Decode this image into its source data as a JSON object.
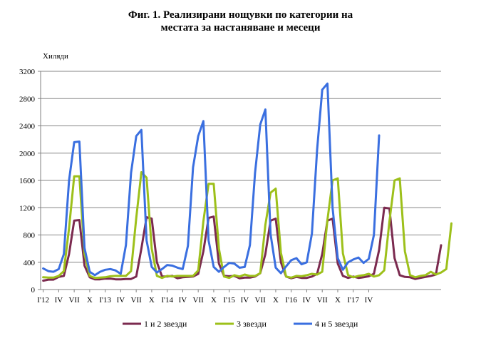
{
  "chart_data": {
    "type": "line",
    "title_line1": "Фиг. 1. Реализирани нощувки по категории на",
    "title_line2": "местата за настаняване и месеци",
    "ylabel": "Хиляди",
    "xlabel": "",
    "ylim": [
      0,
      3200
    ],
    "yticks": [
      "0",
      "400",
      "800",
      "1200",
      "1600",
      "2000",
      "2400",
      "2800",
      "3200"
    ],
    "grid": true,
    "legend_position": "bottom",
    "x_tick_labels": [
      "I'12",
      "IV",
      "VII",
      "X",
      "I'13",
      "IV",
      "VII",
      "X",
      "I'14",
      "IV",
      "VII",
      "X",
      "I'15",
      "IV",
      "VII",
      "X",
      "I'16",
      "IV",
      "VII",
      "X",
      "I'17",
      "IV"
    ],
    "series": [
      {
        "name": "1 и 2 звезди",
        "color": "#7b2a4f",
        "values": [
          130,
          145,
          145,
          185,
          200,
          520,
          1010,
          1020,
          350,
          180,
          150,
          150,
          160,
          160,
          150,
          150,
          155,
          155,
          190,
          600,
          1060,
          1040,
          400,
          190,
          190,
          200,
          165,
          180,
          185,
          190,
          230,
          560,
          1050,
          1070,
          380,
          200,
          195,
          200,
          165,
          175,
          175,
          190,
          240,
          520,
          1010,
          1040,
          400,
          190,
          165,
          185,
          170,
          170,
          190,
          230,
          520,
          1010,
          1040,
          380,
          200,
          170,
          190,
          170,
          180,
          195,
          230,
          580,
          1200,
          1190,
          460,
          210,
          185,
          180,
          155,
          170,
          185,
          200,
          220,
          650
        ]
      },
      {
        "name": "3 звезди",
        "color": "#9dc01a",
        "values": [
          180,
          175,
          175,
          200,
          270,
          900,
          1660,
          1660,
          520,
          200,
          170,
          175,
          180,
          195,
          200,
          200,
          200,
          270,
          1050,
          1720,
          1640,
          600,
          200,
          170,
          200,
          190,
          200,
          200,
          200,
          200,
          280,
          1000,
          1550,
          1550,
          600,
          190,
          170,
          210,
          190,
          220,
          200,
          200,
          240,
          950,
          1420,
          1480,
          540,
          190,
          175,
          200,
          195,
          210,
          230,
          220,
          260,
          1020,
          1600,
          1630,
          530,
          210,
          180,
          200,
          210,
          230,
          190,
          210,
          280,
          1000,
          1600,
          1630,
          560,
          210,
          180,
          200,
          210,
          260,
          220,
          250,
          300,
          970
        ]
      },
      {
        "name": "4 и 5 звезди",
        "color": "#3a6fe0",
        "values": [
          310,
          270,
          260,
          300,
          520,
          1600,
          2160,
          2170,
          610,
          260,
          210,
          260,
          290,
          300,
          280,
          230,
          650,
          1710,
          2250,
          2340,
          720,
          330,
          250,
          300,
          360,
          350,
          320,
          300,
          640,
          1790,
          2250,
          2470,
          720,
          330,
          260,
          330,
          390,
          380,
          320,
          330,
          650,
          1710,
          2420,
          2640,
          810,
          320,
          240,
          340,
          430,
          460,
          370,
          400,
          820,
          2050,
          2930,
          3020,
          1200,
          460,
          290,
          400,
          440,
          470,
          390,
          450,
          800,
          2260
        ]
      }
    ]
  }
}
